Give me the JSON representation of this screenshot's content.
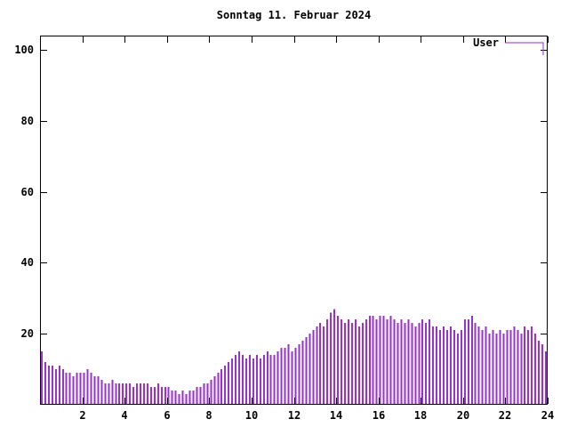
{
  "chart_data": {
    "type": "bar",
    "style": "impulses",
    "title": "Sonntag 11. Februar 2024",
    "legend_label": "User",
    "legend_position": "top-right",
    "bar_color": "#9932cc",
    "axis_color": "#000000",
    "background": "#ffffff",
    "xlabel": "",
    "ylabel": "",
    "x_unit": "hour_of_day",
    "x_interval_minutes": 10,
    "xlim": [
      0,
      24
    ],
    "ylim": [
      0,
      104
    ],
    "x_ticks": [
      2,
      4,
      6,
      8,
      10,
      12,
      14,
      16,
      18,
      20,
      22,
      24
    ],
    "y_ticks": [
      20,
      40,
      60,
      80,
      100
    ],
    "grid": false,
    "values": [
      15,
      12,
      11,
      11,
      10,
      11,
      10,
      9,
      9,
      8,
      9,
      9,
      9,
      10,
      9,
      8,
      8,
      7,
      6,
      6,
      7,
      6,
      6,
      6,
      6,
      6,
      5,
      6,
      6,
      6,
      6,
      5,
      5,
      6,
      5,
      5,
      5,
      4,
      4,
      3,
      4,
      3,
      4,
      4,
      5,
      5,
      6,
      6,
      7,
      8,
      9,
      10,
      11,
      12,
      13,
      14,
      15,
      14,
      13,
      14,
      13,
      14,
      13,
      14,
      15,
      14,
      14,
      15,
      16,
      16,
      17,
      15,
      16,
      17,
      18,
      19,
      20,
      21,
      22,
      23,
      22,
      24,
      26,
      27,
      25,
      24,
      23,
      24,
      23,
      24,
      22,
      23,
      24,
      25,
      25,
      24,
      25,
      25,
      24,
      25,
      24,
      23,
      24,
      23,
      24,
      23,
      22,
      23,
      24,
      23,
      24,
      22,
      22,
      21,
      22,
      21,
      22,
      21,
      20,
      21,
      24,
      24,
      25,
      23,
      22,
      21,
      22,
      20,
      21,
      20,
      21,
      20,
      21,
      21,
      22,
      21,
      20,
      22,
      21,
      22,
      20,
      18,
      17,
      15
    ]
  }
}
